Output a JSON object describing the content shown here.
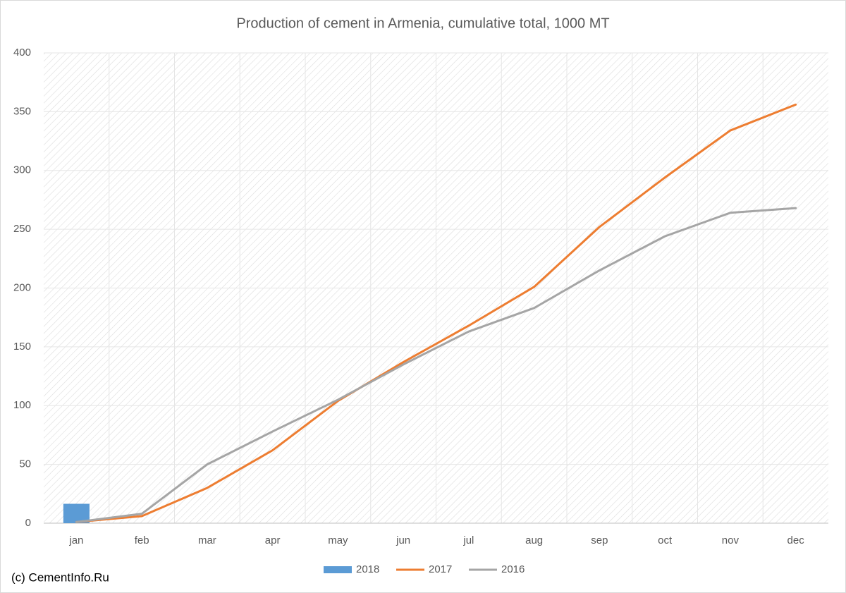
{
  "chart_data": {
    "type": "combo",
    "title": "Production of cement in Armenia, cumulative total, 1000 MT",
    "source": "(c) CementInfo.Ru",
    "categories": [
      "jan",
      "feb",
      "mar",
      "apr",
      "may",
      "jun",
      "jul",
      "aug",
      "sep",
      "oct",
      "nov",
      "dec"
    ],
    "series": [
      {
        "name": "2018",
        "type": "bar",
        "color": "#5b9bd5",
        "values": [
          16.5,
          null,
          null,
          null,
          null,
          null,
          null,
          null,
          null,
          null,
          null,
          null
        ]
      },
      {
        "name": "2017",
        "type": "line",
        "color": "#ed7d31",
        "values": [
          1,
          6,
          30,
          62,
          104,
          137,
          168,
          201,
          252,
          294,
          334,
          356
        ]
      },
      {
        "name": "2016",
        "type": "line",
        "color": "#a5a5a5",
        "values": [
          1,
          8,
          50,
          78,
          105,
          135,
          163,
          183,
          215,
          244,
          264,
          268
        ]
      }
    ],
    "ylim": [
      0,
      400
    ],
    "yticks": [
      0,
      50,
      100,
      150,
      200,
      250,
      300,
      350,
      400
    ],
    "grid": true,
    "legend": "bottom"
  }
}
